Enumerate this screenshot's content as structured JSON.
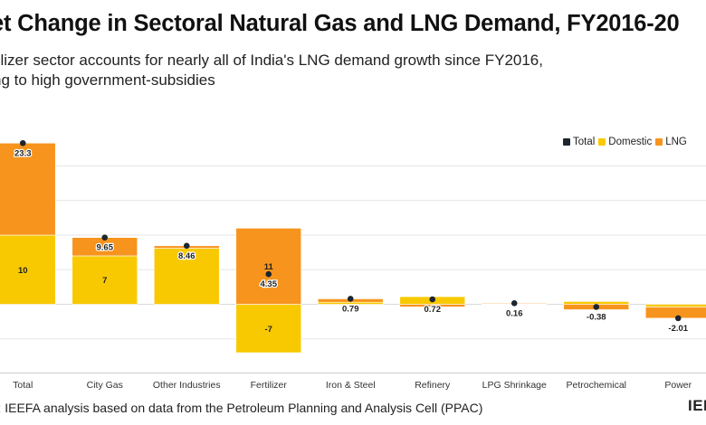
{
  "title": "et Change in Sectoral Natural Gas and LNG Demand, FY2016-20",
  "subtitle_lines": [
    "tilizer sector accounts for nearly all of India's LNG demand growth since FY2016,",
    "ng to high government-subsidies"
  ],
  "source": "rce: IEEFA analysis based on data from the Petroleum Planning and Analysis Cell (PPAC)",
  "logo_text": "IEE",
  "colors": {
    "total": "#1c2530",
    "domestic": "#f8c900",
    "lng": "#f7941d",
    "grid": "#e6e6e6"
  },
  "chart_data": {
    "type": "bar",
    "stacked": true,
    "categories": [
      "Total",
      "City Gas",
      "Other Industries",
      "Fertilizer",
      "Iron & Steel",
      "Refinery",
      "LPG Shrinkage",
      "Petrochemical",
      "Power"
    ],
    "series": [
      {
        "name": "Domestic",
        "values": [
          10,
          7,
          8.1,
          -7,
          0.3,
          1.1,
          0.05,
          0.4,
          -0.4
        ]
      },
      {
        "name": "LNG",
        "values": [
          13.3,
          2.65,
          0.36,
          11,
          0.49,
          -0.38,
          0.11,
          -0.78,
          -1.61
        ]
      }
    ],
    "totals": [
      23.3,
      9.65,
      8.46,
      4.35,
      0.79,
      0.72,
      0.16,
      -0.38,
      -2.01
    ],
    "data_labels": {
      "domestic": [
        "10",
        "7",
        "",
        "-7",
        "",
        "",
        "",
        "",
        ""
      ],
      "lng": [
        "",
        "",
        "",
        "11",
        "",
        "",
        "",
        "",
        ""
      ],
      "total": [
        "23.3",
        "9.65",
        "8.46",
        "4.35",
        "0.79",
        "0.72",
        "0.16",
        "-0.38",
        "-2.01"
      ]
    },
    "legend": [
      "Total",
      "Domestic",
      "LNG"
    ],
    "legend_position": "top-right",
    "ylim": [
      -9,
      24
    ],
    "grid": true
  }
}
